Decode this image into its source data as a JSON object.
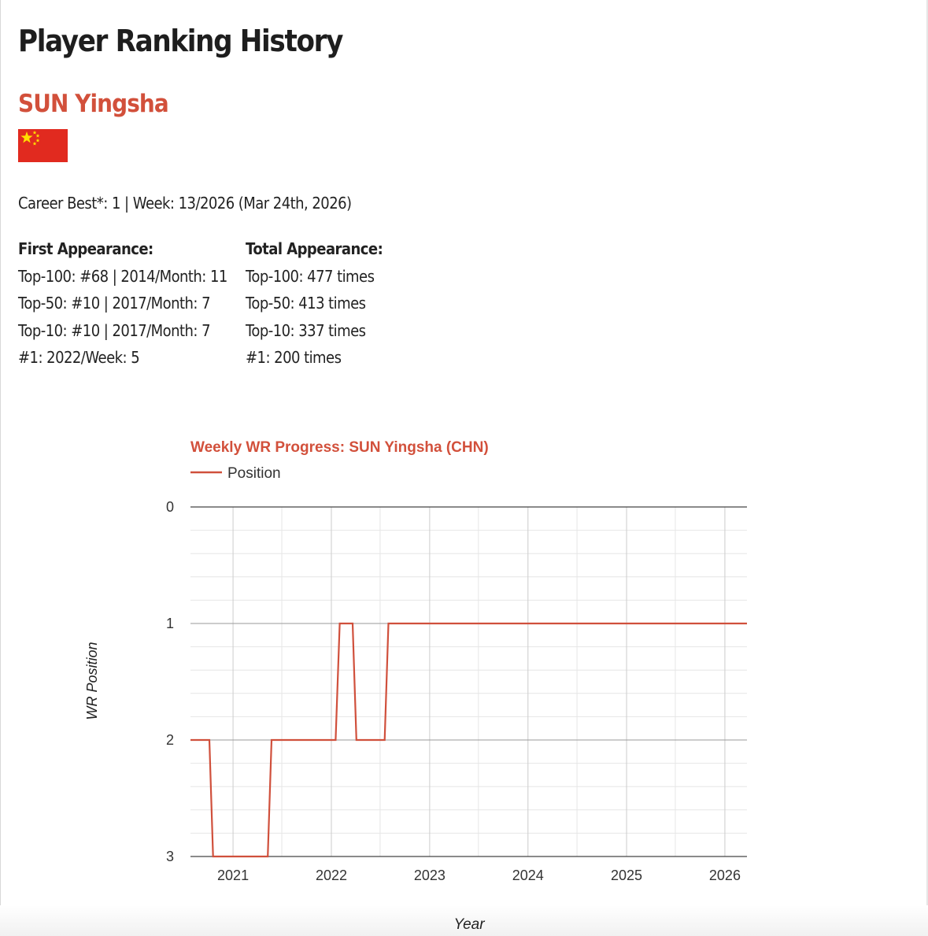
{
  "page": {
    "title": "Player Ranking History",
    "player_name": "SUN Yingsha",
    "flag_icon": "china-flag-icon",
    "career_best": "Career Best*: 1 | Week: 13/2026 (Mar 24th, 2026)",
    "first_appearance": {
      "heading": "First Appearance:",
      "lines": [
        "Top-100: #68 | 2014/Month: 11",
        "Top-50: #10 | 2017/Month: 7",
        "Top-10: #10 | 2017/Month: 7",
        "#1: 2022/Week: 5"
      ]
    },
    "total_appearance": {
      "heading": "Total Appearance:",
      "lines": [
        "Top-100: 477 times",
        "Top-50: 413 times",
        "Top-10: 337 times",
        "#1: 200 times"
      ]
    }
  },
  "colors": {
    "accent": "#d2503b",
    "line": "#d0503c",
    "flag_red": "#e12a1f",
    "flag_star": "#ffde00"
  },
  "chart_data": {
    "type": "line",
    "title": "Weekly WR Progress: SUN Yingsha (CHN)",
    "xlabel": "Year",
    "ylabel": "WR Position",
    "legend": {
      "position": "top-left",
      "entries": [
        "Position"
      ]
    },
    "y_inverted": true,
    "ylim": [
      0,
      3
    ],
    "yticks": [
      0,
      1,
      2,
      3
    ],
    "xlim": [
      "2020-07-27",
      "2026-03-24"
    ],
    "xticks": [
      "2021",
      "2022",
      "2023",
      "2024",
      "2025",
      "2026"
    ],
    "grid": true,
    "series": [
      {
        "name": "Position",
        "points": [
          [
            "2020-07-27",
            2
          ],
          [
            "2020-10-05",
            2
          ],
          [
            "2020-10-19",
            3
          ],
          [
            "2021-05-10",
            3
          ],
          [
            "2021-05-24",
            2
          ],
          [
            "2022-01-17",
            2
          ],
          [
            "2022-02-01",
            1
          ],
          [
            "2022-03-21",
            1
          ],
          [
            "2022-04-04",
            2
          ],
          [
            "2022-07-18",
            2
          ],
          [
            "2022-08-01",
            1
          ],
          [
            "2026-03-24",
            1
          ]
        ]
      }
    ]
  }
}
